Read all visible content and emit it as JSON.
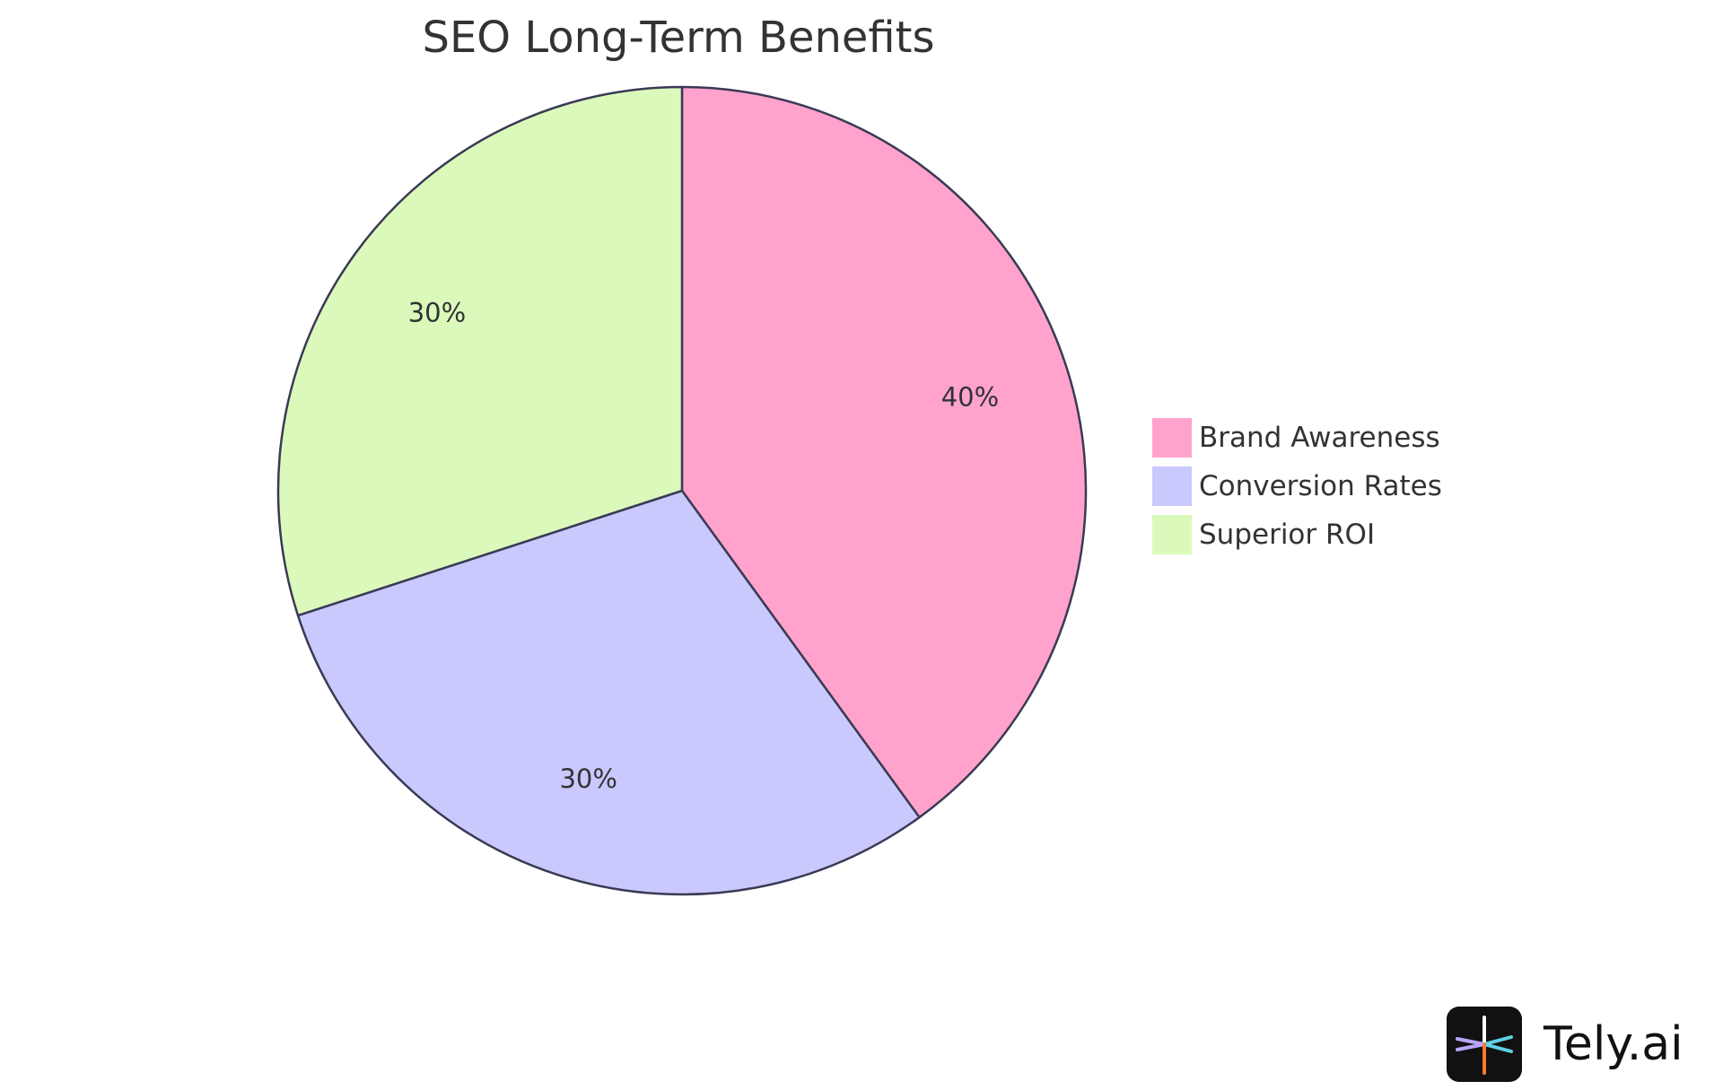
{
  "chart_data": {
    "type": "pie",
    "title": "SEO Long-Term Benefits",
    "slices": [
      {
        "label": "Brand Awareness",
        "value": 40,
        "display": "40%",
        "color": "#ffa3cd"
      },
      {
        "label": "Conversion Rates",
        "value": 30,
        "display": "30%",
        "color": "#c9c9fd"
      },
      {
        "label": "Superior ROI",
        "value": 30,
        "display": "30%",
        "color": "#dbf9bb"
      }
    ],
    "start_angle": "12 o'clock",
    "direction": "clockwise",
    "legend_position": "right",
    "stroke_color": "#3a3a55"
  },
  "brand": {
    "name": "Tely.ai",
    "logo_icon": "tely-logo-icon",
    "logo_colors": [
      "#ffffff",
      "#b8a4ff",
      "#5fd0e6",
      "#ff7a2f"
    ]
  }
}
